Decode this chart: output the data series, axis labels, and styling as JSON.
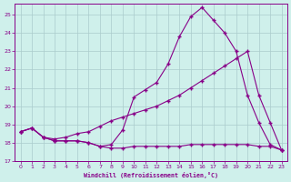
{
  "xlabel": "Windchill (Refroidissement éolien,°C)",
  "background_color": "#cff0eb",
  "grid_color": "#aacccc",
  "line_color": "#880088",
  "x_range_min": -0.5,
  "x_range_max": 23.5,
  "y_range_min": 17.0,
  "y_range_max": 25.6,
  "yticks": [
    17,
    18,
    19,
    20,
    21,
    22,
    23,
    24,
    25
  ],
  "xticks": [
    0,
    1,
    2,
    3,
    4,
    5,
    6,
    7,
    8,
    9,
    10,
    11,
    12,
    13,
    14,
    15,
    16,
    17,
    18,
    19,
    20,
    21,
    22,
    23
  ],
  "line_flat_x": [
    0,
    1,
    2,
    3,
    4,
    5,
    6,
    7,
    8,
    9,
    10,
    11,
    12,
    13,
    14,
    15,
    16,
    17,
    18,
    19,
    20,
    21,
    22,
    23
  ],
  "line_flat_y": [
    18.6,
    18.8,
    18.3,
    18.1,
    18.1,
    18.1,
    18.0,
    17.8,
    17.7,
    17.7,
    17.8,
    17.8,
    17.8,
    17.8,
    17.8,
    17.9,
    17.9,
    17.9,
    17.9,
    17.9,
    17.9,
    17.8,
    17.8,
    17.6
  ],
  "line_peak_x": [
    0,
    1,
    2,
    3,
    4,
    5,
    6,
    7,
    8,
    9,
    10,
    11,
    12,
    13,
    14,
    15,
    16,
    17,
    18,
    19,
    20,
    21,
    22,
    23
  ],
  "line_peak_y": [
    18.6,
    18.8,
    18.3,
    18.1,
    18.1,
    18.1,
    18.0,
    17.8,
    17.9,
    18.7,
    20.5,
    20.9,
    21.3,
    22.3,
    23.8,
    24.9,
    25.4,
    24.7,
    24.0,
    23.0,
    20.6,
    19.1,
    17.9,
    17.6
  ],
  "line_diag_x": [
    0,
    1,
    2,
    3,
    4,
    5,
    6,
    7,
    8,
    9,
    10,
    11,
    12,
    13,
    14,
    15,
    16,
    17,
    18,
    19,
    20,
    21,
    22,
    23
  ],
  "line_diag_y": [
    18.6,
    18.8,
    18.3,
    18.2,
    18.3,
    18.5,
    18.6,
    18.9,
    19.2,
    19.4,
    19.6,
    19.8,
    20.0,
    20.3,
    20.6,
    21.0,
    21.4,
    21.8,
    22.2,
    22.6,
    23.0,
    20.6,
    19.1,
    17.6
  ]
}
